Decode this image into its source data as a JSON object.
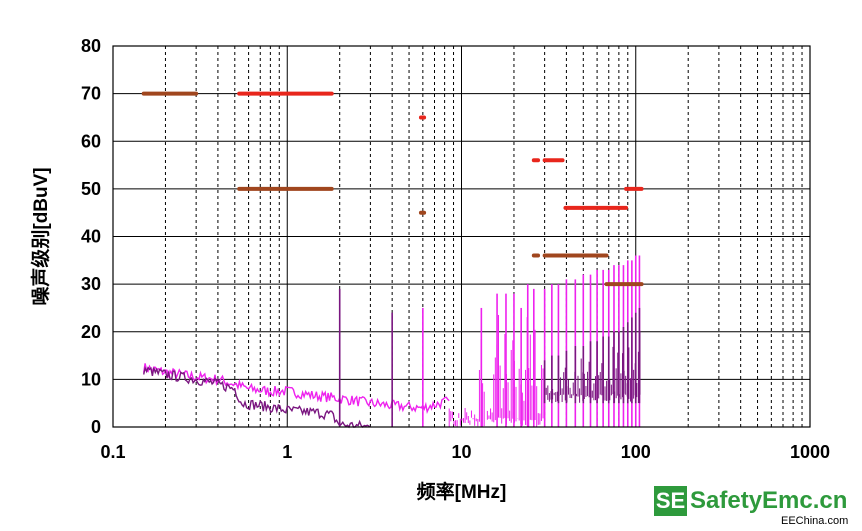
{
  "chart_data": {
    "type": "line",
    "xlabel": "频率[MHz]",
    "ylabel": "噪声级别[dBuV]",
    "x_scale": "log",
    "xlim": [
      0.1,
      1000
    ],
    "ylim": [
      0,
      80
    ],
    "x_ticks": [
      "0.1",
      "1",
      "10",
      "100",
      "1000"
    ],
    "y_ticks": [
      "0",
      "10",
      "20",
      "30",
      "40",
      "50",
      "60",
      "70",
      "80"
    ],
    "grid": true,
    "limit_lines": [
      {
        "color": "#a0461e",
        "segments": [
          {
            "x": [
              0.15,
              0.3
            ],
            "y": 70
          },
          {
            "x": [
              0.53,
              1.8
            ],
            "y": 50
          },
          {
            "x": [
              5.85,
              6.1
            ],
            "y": 45
          },
          {
            "x": [
              26,
              27.5
            ],
            "y": 36
          },
          {
            "x": [
              30,
              68
            ],
            "y": 36
          },
          {
            "x": [
              68,
              108
            ],
            "y": 30
          }
        ]
      },
      {
        "color": "#e8261c",
        "segments": [
          {
            "x": [
              0.53,
              1.8
            ],
            "y": 70
          },
          {
            "x": [
              5.85,
              6.1
            ],
            "y": 65
          },
          {
            "x": [
              26,
              27.5
            ],
            "y": 56
          },
          {
            "x": [
              30,
              38
            ],
            "y": 56
          },
          {
            "x": [
              39.5,
              88
            ],
            "y": 46
          },
          {
            "x": [
              88,
              108
            ],
            "y": 50
          }
        ]
      }
    ],
    "series": [
      {
        "color": "#ee22ee",
        "points": [
          [
            0.15,
            12.5
          ],
          [
            0.2,
            11.5
          ],
          [
            0.3,
            10.5
          ],
          [
            0.4,
            10
          ],
          [
            0.5,
            9
          ],
          [
            0.6,
            8
          ],
          [
            0.8,
            7.5
          ],
          [
            1.0,
            7.5
          ],
          [
            1.5,
            6.5
          ],
          [
            2.0,
            6
          ],
          [
            3.0,
            5
          ],
          [
            4.0,
            4.5
          ],
          [
            6.0,
            4
          ],
          [
            8.5,
            5.5
          ]
        ],
        "spikes": [
          [
            6.0,
            25
          ],
          [
            13,
            25
          ],
          [
            16,
            28
          ],
          [
            18,
            28
          ],
          [
            20,
            28
          ],
          [
            22,
            25
          ],
          [
            24,
            30
          ],
          [
            26,
            29
          ],
          [
            30,
            29
          ],
          [
            33,
            30
          ],
          [
            36,
            30
          ],
          [
            40,
            31
          ],
          [
            45,
            31
          ],
          [
            50,
            32
          ],
          [
            55,
            32
          ],
          [
            60,
            33
          ],
          [
            65,
            33
          ],
          [
            70,
            33
          ],
          [
            75,
            34
          ],
          [
            80,
            34
          ],
          [
            85,
            34
          ],
          [
            90,
            35
          ],
          [
            95,
            35
          ],
          [
            100,
            36
          ],
          [
            105,
            36
          ]
        ],
        "spikes_base": 0,
        "spike_range": [
          8.5,
          30
        ]
      },
      {
        "color": "#7a1680",
        "points": [
          [
            0.15,
            12
          ],
          [
            0.2,
            11
          ],
          [
            0.3,
            10
          ],
          [
            0.4,
            9
          ],
          [
            0.5,
            8
          ],
          [
            0.55,
            5
          ],
          [
            0.7,
            4.5
          ],
          [
            1.0,
            3.5
          ],
          [
            1.5,
            3
          ],
          [
            1.8,
            2.5
          ],
          [
            2.0,
            0.5
          ],
          [
            3.0,
            0
          ]
        ],
        "spikes": [
          [
            2.0,
            29
          ],
          [
            4.0,
            24
          ],
          [
            30,
            14
          ],
          [
            33,
            15
          ],
          [
            36,
            15
          ],
          [
            40,
            16
          ],
          [
            45,
            17
          ],
          [
            50,
            17
          ],
          [
            55,
            18
          ],
          [
            60,
            18
          ],
          [
            65,
            19
          ],
          [
            70,
            19
          ],
          [
            75,
            20
          ],
          [
            80,
            20
          ],
          [
            85,
            21
          ],
          [
            90,
            22
          ],
          [
            95,
            23
          ],
          [
            100,
            24
          ],
          [
            105,
            25
          ]
        ],
        "spikes_base": 5,
        "spike_range": [
          30,
          108
        ]
      }
    ]
  },
  "watermark": {
    "badge": "SE",
    "brand": "SafetyEmc.cn",
    "sub": "EEChina.com",
    "color": "#2e9a3c"
  }
}
